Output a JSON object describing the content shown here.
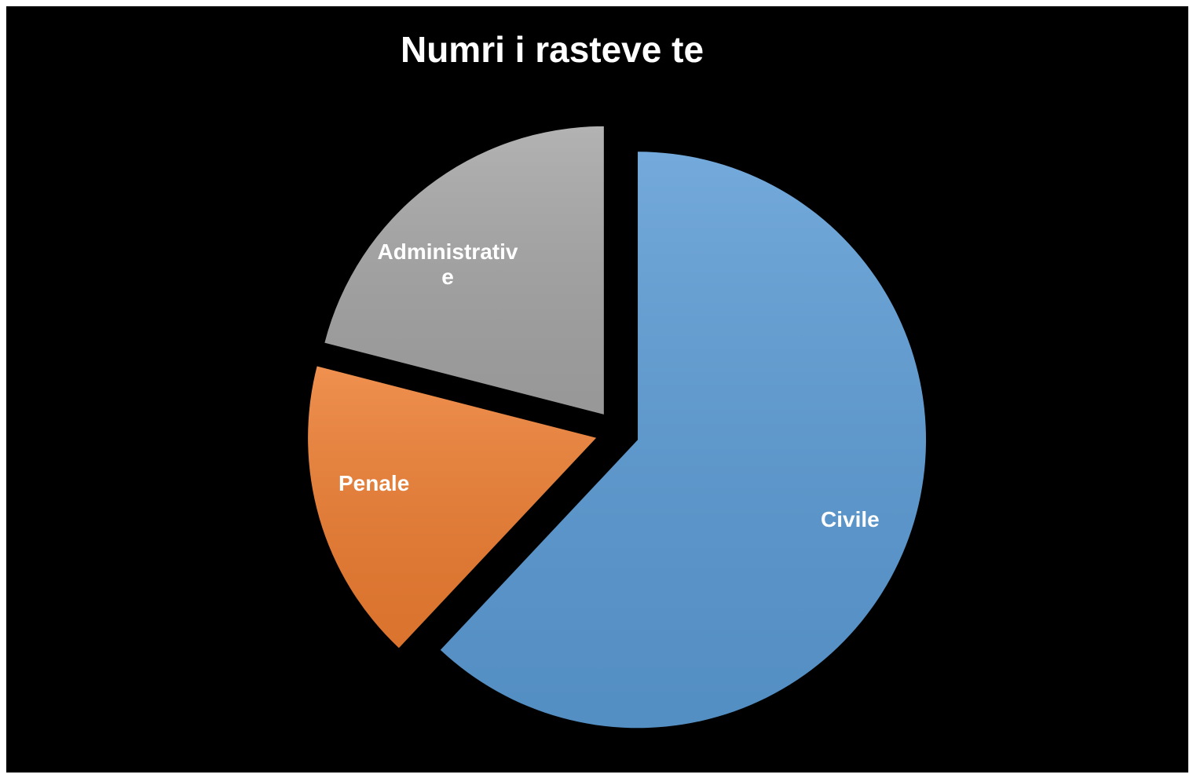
{
  "chart_data": {
    "type": "pie",
    "title": "Numri i rasteve te",
    "categories": [
      "Civile",
      "Penale",
      "Administrative"
    ],
    "values": [
      62,
      17,
      21
    ],
    "colors": [
      "#5b9bd5",
      "#ed7d31",
      "#a5a5a5"
    ]
  }
}
